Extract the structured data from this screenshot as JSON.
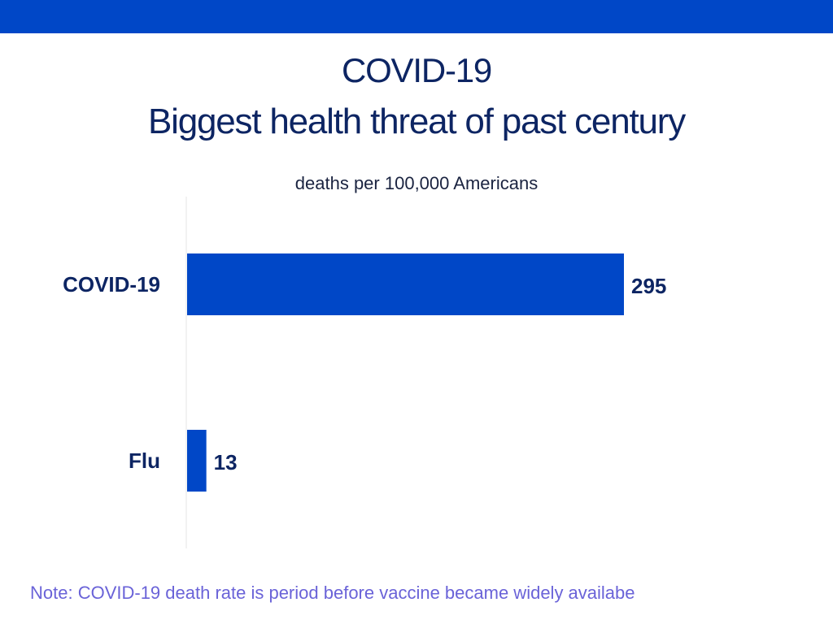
{
  "title_line1": "COVID-19",
  "title_line2": "Biggest health threat of past century",
  "subtitle": "deaths per 100,000 Americans",
  "note": "Note: COVID-19 death rate is period before vaccine became widely availabe",
  "colors": {
    "top_bar": "#0047c7",
    "bar": "#0047c7",
    "title": "#0d2563",
    "label": "#0d2563",
    "note": "#6a63d8"
  },
  "chart_data": {
    "type": "bar",
    "orientation": "horizontal",
    "categories": [
      "COVID-19",
      "Flu"
    ],
    "values": [
      295,
      13
    ],
    "data_labels": [
      "295",
      "13"
    ],
    "title": "COVID-19 Biggest health threat of past century",
    "subtitle": "deaths per 100,000 Americans",
    "xlim": [
      0,
      295
    ],
    "grid": false,
    "legend": "none"
  }
}
